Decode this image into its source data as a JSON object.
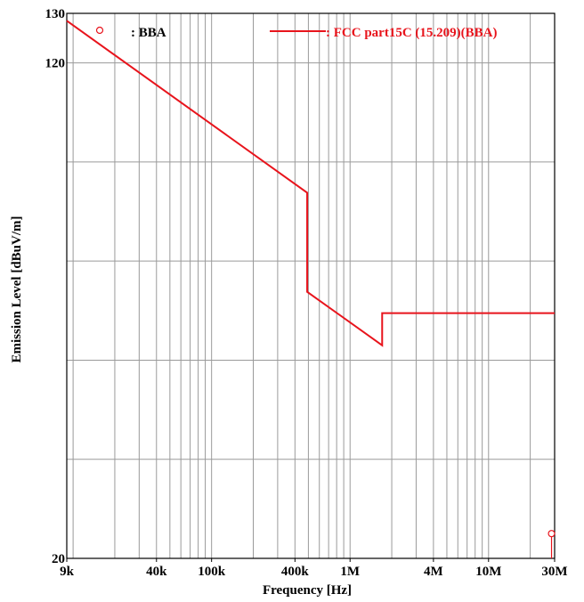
{
  "chart_data": {
    "type": "line",
    "xscale": "log",
    "xlim": [
      9000,
      30000000
    ],
    "ylim": [
      20,
      130
    ],
    "xlabel": "Frequency [Hz]",
    "ylabel": "Emission Level [dBuV/m]",
    "grid": true,
    "x_ticks": [
      {
        "value": 9000,
        "label": "9k"
      },
      {
        "value": 40000,
        "label": "40k"
      },
      {
        "value": 100000,
        "label": "100k"
      },
      {
        "value": 400000,
        "label": "400k"
      },
      {
        "value": 1000000,
        "label": "1M"
      },
      {
        "value": 4000000,
        "label": "4M"
      },
      {
        "value": 10000000,
        "label": "10M"
      },
      {
        "value": 30000000,
        "label": "30M"
      }
    ],
    "y_ticks": [
      {
        "value": 130,
        "label": "130"
      },
      {
        "value": 120,
        "label": "120"
      },
      {
        "value": 20,
        "label": "20"
      }
    ],
    "legend": [
      {
        "symbol": "circle",
        "label": ": BBA",
        "color": "#000000",
        "symbol_color": "#e8141c"
      },
      {
        "symbol": "line",
        "label": ": FCC part15C (15.209)(BBA)",
        "color": "#e8141c"
      }
    ],
    "series": [
      {
        "name": ": FCC part15C (15.209)(BBA)",
        "kind": "limit-line",
        "color": "#e8141c",
        "x": [
          9000,
          490000,
          490000,
          1705000,
          1705000,
          30000000
        ],
        "y": [
          128.5,
          93.8,
          73.8,
          63.0,
          69.5,
          69.5
        ]
      },
      {
        "name": ": BBA",
        "kind": "measurement",
        "color": "#e8141c",
        "x": [
          28500000
        ],
        "y": [
          25.0
        ]
      }
    ]
  },
  "colors": {
    "limit": "#e8141c",
    "grid": "#9a9a9a",
    "frame": "#000000"
  }
}
